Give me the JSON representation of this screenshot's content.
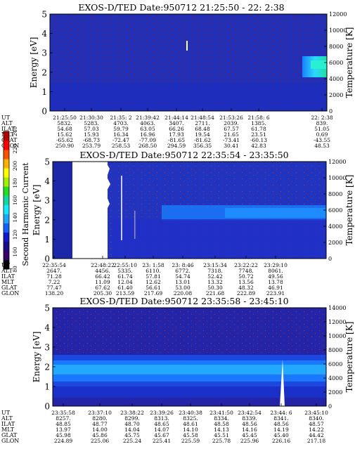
{
  "chart_data": [
    {
      "type": "heatmap",
      "title": "EXOS-D/TED   Date:950712  21:25:50 - 22: 2:38",
      "ylabel": "Energy [eV]",
      "y2label": "Temperature [K]",
      "ylim": [
        0,
        5
      ],
      "yticks": [
        "0",
        "1",
        "2",
        "3",
        "4",
        "5"
      ],
      "y2lim": [
        0,
        12000
      ],
      "y2ticks": [
        "0",
        "2000",
        "4000",
        "6000",
        "8000",
        "10000",
        "12000"
      ],
      "table_labels": [
        "UT",
        "ALT",
        "ILAT",
        "MLT",
        "GLAT",
        "GLON"
      ],
      "columns": [
        [
          "21:25:50",
          "5832.",
          "54.68",
          "15.62",
          "-65.62",
          "250.90"
        ],
        [
          "21:30:30",
          "5283.",
          "57.03",
          "15.93",
          "-68.73",
          "253.79"
        ],
        [
          "21:35: 2",
          "4703.",
          "59.79",
          "16.34",
          "-72.47",
          "258.53"
        ],
        [
          "21:39:42",
          "4063.",
          "63.05",
          "16.96",
          "-77.09",
          "268.50"
        ],
        [
          "21:44:14",
          "3407.",
          "66.26",
          "17.93",
          "-81.65",
          "294.59"
        ],
        [
          "21:48:54",
          "2711.",
          "68.48",
          "19.54",
          "-81.62",
          "356.35"
        ],
        [
          "21:53:26",
          "2039.",
          "67.57",
          "21.65",
          "-73.41",
          "30.41"
        ],
        [
          "21:58: 6",
          "1385.",
          "61.78",
          "23.51",
          "-60.13",
          "42.83"
        ],
        [
          "22: 2:38",
          "839.",
          "51.05",
          "0.69",
          "-43.55",
          "48.53"
        ]
      ]
    },
    {
      "type": "heatmap",
      "title": "EXOS-D/TED   Date:950712  22:35:54 - 23:35:50",
      "ylabel": "Energy [eV]",
      "y2label": "Temperature [K]",
      "ylim": [
        0,
        5
      ],
      "yticks": [
        "0",
        "1",
        "2",
        "3",
        "4",
        "5"
      ],
      "y2lim": [
        0,
        12000
      ],
      "y2ticks": [
        "0",
        "2000",
        "4000",
        "6000",
        "8000",
        "10000",
        "12000"
      ],
      "table_labels": [
        "UT",
        "ALT",
        "ILAT",
        "MLT",
        "GLAT",
        "GLON"
      ],
      "columns": [
        [
          "22:35:54",
          "2647.",
          "71.28",
          "7.22",
          "77.47",
          "138.20"
        ],
        [
          "22:48:22",
          "4456.",
          "66.42",
          "11.09",
          "67.62",
          "205.30"
        ],
        [
          "22:55:10",
          "5335.",
          "61.74",
          "12.04",
          "61.40",
          "213.59"
        ],
        [
          "23: 1:58",
          "6110.",
          "57.81",
          "12.62",
          "56.61",
          "217.69"
        ],
        [
          "23: 8:46",
          "6772.",
          "54.74",
          "13.01",
          "53.00",
          "220.08"
        ],
        [
          "23:15:34",
          "7318.",
          "52.42",
          "13.32",
          "50.30",
          "221.68"
        ],
        [
          "23:22:22",
          "7748.",
          "50.72",
          "13.56",
          "48.32",
          "222.89"
        ],
        [
          "23:29:10",
          "8061.",
          "49.56",
          "13.78",
          "46.91",
          "223.91"
        ]
      ]
    },
    {
      "type": "heatmap",
      "title": "EXOS-D/TED   Date:950712  23:35:58 - 23:45:10",
      "ylabel": "Energy [eV]",
      "y2label": "Temperature [K]",
      "ylim": [
        0,
        5
      ],
      "yticks": [
        "0",
        "1",
        "2",
        "3",
        "4",
        "5"
      ],
      "y2lim": [
        0,
        14000
      ],
      "y2ticks": [
        "0",
        "2000",
        "4000",
        "6000",
        "8000",
        "10000",
        "12000",
        "14000"
      ],
      "table_labels": [
        "UT",
        "ALT",
        "ILAT",
        "MLT",
        "GLAT",
        "GLON"
      ],
      "columns": [
        [
          "23:35:58",
          "8257.",
          "48.85",
          "13.97",
          "45.98",
          "224.89"
        ],
        [
          "23:37:10",
          "8280.",
          "48.77",
          "14.00",
          "45.86",
          "225.06"
        ],
        [
          "23:38:22",
          "8299.",
          "48.70",
          "14.04",
          "45.75",
          "225.24"
        ],
        [
          "23:39:26",
          "8313.",
          "48.65",
          "14.07",
          "45.67",
          "225.41"
        ],
        [
          "23:40:38",
          "8325.",
          "48.61",
          "14.10",
          "45.58",
          "225.59"
        ],
        [
          "23:41:50",
          "8334.",
          "48.58",
          "14.13",
          "45.51",
          "225.78"
        ],
        [
          "23:42:54",
          "8339.",
          "48.56",
          "14.16",
          "45.45",
          "225.96"
        ],
        [
          "23:44: 6",
          "8341.",
          "48.56",
          "14.19",
          "45.40",
          "226.16"
        ],
        [
          "23:45:10",
          "8340.",
          "48.57",
          "14.22",
          "44.42",
          "217.18"
        ]
      ]
    }
  ],
  "colorbar": {
    "label": "Second Harmonic Current",
    "ticks": [
      "80",
      "100",
      "120",
      "140",
      "160",
      "180",
      "200",
      "220",
      "240"
    ],
    "colors": [
      "#000000",
      "#3a006a",
      "#1a0c8a",
      "#1218c8",
      "#1460ff",
      "#1aa8ff",
      "#12e8ff",
      "#10d8a0",
      "#20e020",
      "#a0f000",
      "#ffff00",
      "#ffb000",
      "#ff5000",
      "#ff0000",
      "#b00000"
    ]
  }
}
